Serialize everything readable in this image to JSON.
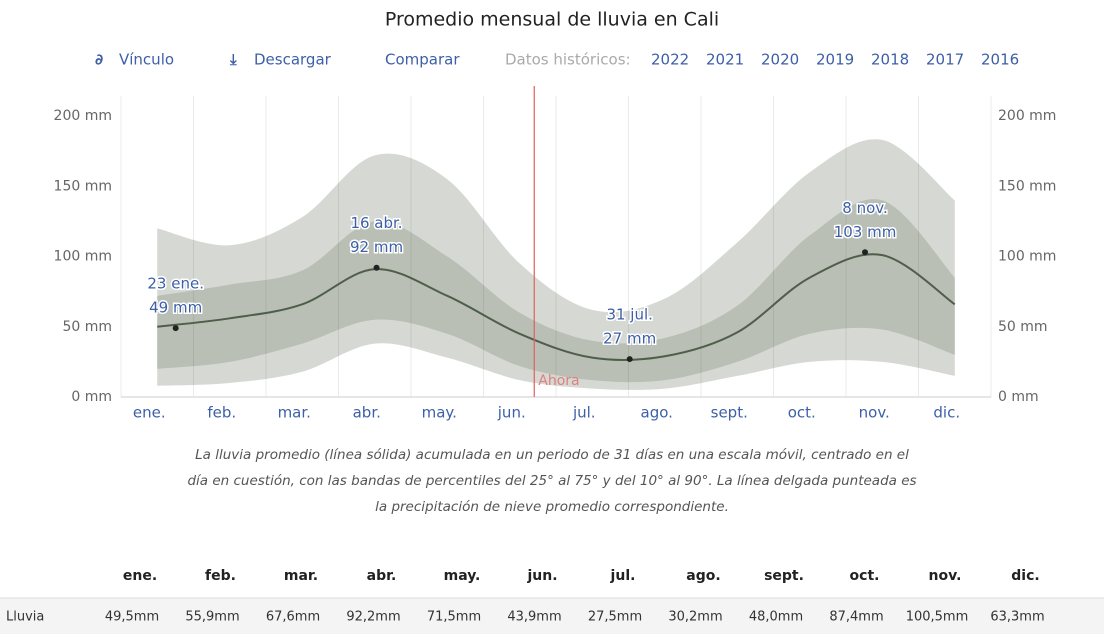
{
  "chart_data": {
    "type": "line",
    "title": "Promedio mensual de lluvia en Cali",
    "categories": [
      "ene.",
      "feb.",
      "mar.",
      "abr.",
      "may.",
      "jun.",
      "jul.",
      "ago.",
      "sept.",
      "oct.",
      "nov.",
      "dic."
    ],
    "values": [
      50,
      56,
      66,
      91,
      72,
      45,
      28,
      29,
      46,
      85,
      101,
      66
    ],
    "color": "#4f5e4a",
    "bands": [
      {
        "lower": [
          8,
          10,
          18,
          38,
          28,
          12,
          6,
          6,
          15,
          25,
          25,
          15
        ],
        "upper": [
          120,
          108,
          128,
          172,
          155,
          95,
          62,
          70,
          110,
          160,
          183,
          140
        ],
        "color": "#d6d9d3"
      },
      {
        "lower": [
          20,
          25,
          38,
          55,
          45,
          22,
          12,
          12,
          25,
          45,
          48,
          30
        ],
        "upper": [
          72,
          80,
          90,
          125,
          100,
          60,
          40,
          42,
          65,
          115,
          140,
          85
        ],
        "color": "#b9bfb4"
      }
    ],
    "ylim": [
      0,
      200
    ],
    "yticks": [
      {
        "value": 0,
        "label": "0 mm"
      },
      {
        "value": 50,
        "label": "50 mm"
      },
      {
        "value": 100,
        "label": "100 mm"
      },
      {
        "value": 150,
        "label": "150 mm"
      },
      {
        "value": 200,
        "label": "200 mm"
      }
    ],
    "y2lim": [
      0,
      200
    ],
    "y2ticks": [
      {
        "value": 0,
        "label": "0 mm"
      },
      {
        "value": 50,
        "label": "50 mm"
      },
      {
        "value": 100,
        "label": "100 mm"
      },
      {
        "value": 150,
        "label": "150 mm"
      },
      {
        "value": 200,
        "label": "200 mm"
      }
    ],
    "annotations": [
      {
        "date": "23 ene.",
        "label": "49 mm",
        "value": 49
      },
      {
        "date": "16 abr.",
        "label": "92 mm",
        "value": 92
      },
      {
        "date": "31 jul.",
        "label": "27 mm",
        "value": 27
      },
      {
        "date": "8 nov.",
        "label": "103 mm",
        "value": 103
      }
    ],
    "now_label": "Ahora"
  },
  "toolbar": {
    "links": [
      "Vínculo",
      "Descargar",
      "Comparar"
    ],
    "history_label": "Datos históricos:",
    "years": [
      "2022",
      "2021",
      "2020",
      "2019",
      "2018",
      "2017",
      "2016"
    ]
  },
  "caption": [
    "La lluvia promedio (línea sólida) acumulada en un periodo de 31 días en una escala móvil, centrado en el",
    "día en cuestión, con las bandas de percentiles del 25° al 75° y del 10° al 90°. La línea delgada punteada es",
    "la precipitación de nieve promedio correspondiente."
  ],
  "table": {
    "header": [
      "ene.",
      "feb.",
      "mar.",
      "abr.",
      "may.",
      "jun.",
      "jul.",
      "ago.",
      "sept.",
      "oct.",
      "nov.",
      "dic."
    ],
    "rows": [
      [
        "Lluvia",
        "49,5mm",
        "55,9mm",
        "67,6mm",
        "92,2mm",
        "71,5mm",
        "43,9mm",
        "27,5mm",
        "30,2mm",
        "48,0mm",
        "87,4mm",
        "100,5mm",
        "63,3mm"
      ]
    ]
  }
}
